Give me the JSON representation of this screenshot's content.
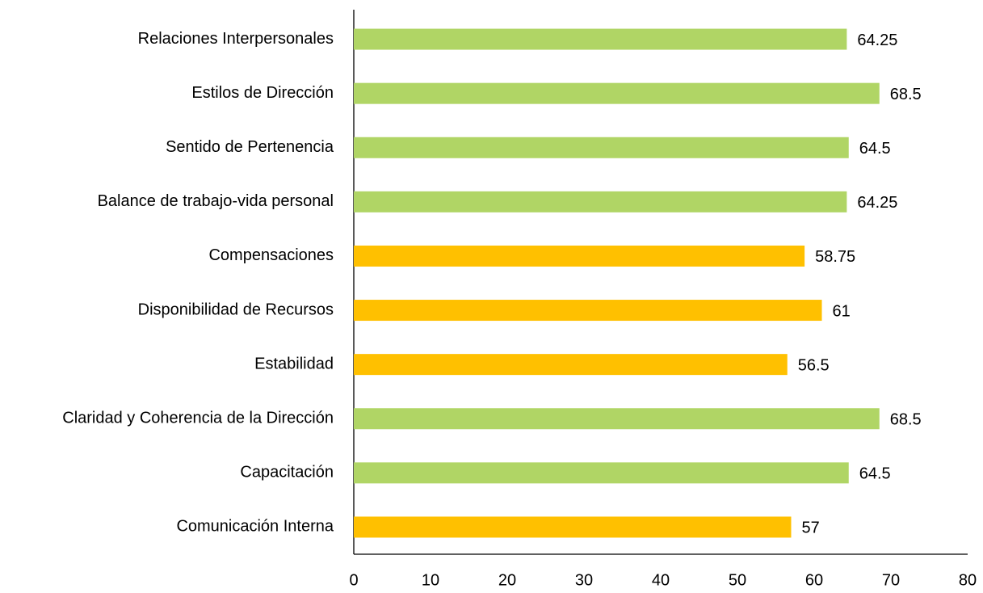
{
  "chart_data": {
    "type": "bar",
    "orientation": "horizontal",
    "categories": [
      "Relaciones Interpersonales",
      "Estilos de Dirección",
      "Sentido de Pertenencia",
      "Balance de trabajo-vida personal",
      "Compensaciones",
      "Disponibilidad de Recursos",
      "Estabilidad",
      "Claridad y Coherencia de la Dirección",
      "Capacitación",
      "Comunicación Interna"
    ],
    "values": [
      64.25,
      68.5,
      64.5,
      64.25,
      58.75,
      61,
      56.5,
      68.5,
      64.5,
      57
    ],
    "colors": [
      "#b0d565",
      "#b0d565",
      "#b0d565",
      "#b0d565",
      "#ffc000",
      "#ffc000",
      "#ffc000",
      "#b0d565",
      "#b0d565",
      "#ffc000"
    ],
    "xlim": [
      0,
      80
    ],
    "xticks": [
      0,
      10,
      20,
      30,
      40,
      50,
      60,
      70,
      80
    ],
    "grid": false
  }
}
